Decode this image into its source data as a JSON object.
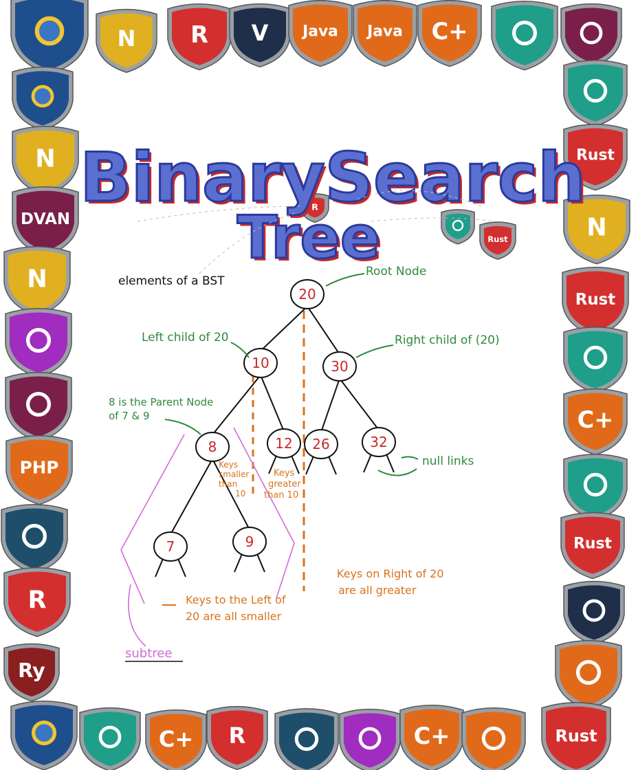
{
  "title": {
    "line1": "BinarySearch",
    "line2": "Tree",
    "fill": "#5a6fd0",
    "stroke": "#2b3a9c",
    "shadow": "#c62828"
  },
  "subtitle": "elements of a BST",
  "colors": {
    "green": "#2e8b3a",
    "orange": "#d9731a",
    "red": "#c62828",
    "pink": "#d36ad6",
    "ink": "#111111",
    "shield_rim": "#9aa0a6"
  },
  "tree": {
    "nodes": [
      {
        "key": "20",
        "label": "20"
      },
      {
        "key": "10",
        "label": "10"
      },
      {
        "key": "30",
        "label": "30"
      },
      {
        "key": "8",
        "label": "8"
      },
      {
        "key": "12",
        "label": "12"
      },
      {
        "key": "26",
        "label": "26"
      },
      {
        "key": "32",
        "label": "32"
      },
      {
        "key": "7",
        "label": "7"
      },
      {
        "key": "9",
        "label": "9"
      }
    ],
    "edges": [
      [
        "20",
        "10"
      ],
      [
        "20",
        "30"
      ],
      [
        "10",
        "8"
      ],
      [
        "10",
        "12"
      ],
      [
        "30",
        "26"
      ],
      [
        "30",
        "32"
      ],
      [
        "8",
        "7"
      ],
      [
        "8",
        "9"
      ]
    ]
  },
  "annotations": {
    "root_node": "Root Node",
    "left_child": "Left child of 20",
    "right_child": "Right child of (20)",
    "parent_node_line1": "8 is the Parent Node",
    "parent_node_line2": "of 7 & 9",
    "keys_smaller_line1": "Keys",
    "keys_smaller_line2": "smaller",
    "keys_smaller_line3": "than",
    "keys_smaller_line4": "10",
    "keys_greater_line1": "Keys",
    "keys_greater_line2": "greater",
    "keys_greater_line3": "than 10",
    "null_links": "null links",
    "keys_right_line1": "Keys on Right of 20",
    "keys_right_line2": "are all greater",
    "keys_left_line1": "Keys to the Left of",
    "keys_left_line2": "20 are all smaller",
    "subtree": "subtree"
  },
  "badges": [
    {
      "icon": "python-icon",
      "label": "",
      "color": "#1f4e8c"
    },
    {
      "icon": "node-icon",
      "label": "N",
      "color": "#e0b020"
    },
    {
      "icon": "r-logo-icon",
      "label": "R",
      "color": "#d32f2f"
    },
    {
      "icon": "v-logo-icon",
      "label": "V",
      "color": "#1f2f4a"
    },
    {
      "icon": "java-icon",
      "label": "Java",
      "color": "#e06a1a"
    },
    {
      "icon": "java-icon",
      "label": "Java",
      "color": "#e06a1a"
    },
    {
      "icon": "cplus-icon",
      "label": "C+",
      "color": "#e06a1a"
    },
    {
      "icon": "flutter-icon",
      "label": "",
      "color": "#1f9e8a"
    },
    {
      "icon": "d-logo-icon",
      "label": "",
      "color": "#7a1f4a"
    },
    {
      "icon": "python-icon",
      "label": "",
      "color": "#1f4e8c"
    },
    {
      "icon": "node-icon",
      "label": "N",
      "color": "#e0b020"
    },
    {
      "icon": "dvan-icon",
      "label": "DVAN",
      "color": "#7a1f4a"
    },
    {
      "icon": "node-icon",
      "label": "N",
      "color": "#e0b020"
    },
    {
      "icon": "d-logo-icon",
      "label": "",
      "color": "#a02cc0"
    },
    {
      "icon": "m-logo-icon",
      "label": "",
      "color": "#7a1f4a"
    },
    {
      "icon": "php-icon",
      "label": "PHP",
      "color": "#e06a1a"
    },
    {
      "icon": "c-circle-icon",
      "label": "",
      "color": "#1f4e6a"
    },
    {
      "icon": "r-logo-icon",
      "label": "R",
      "color": "#d32f2f"
    },
    {
      "icon": "ry-icon",
      "label": "Ry",
      "color": "#8a1f1f"
    },
    {
      "icon": "flutter-icon",
      "label": "",
      "color": "#1f9e8a"
    },
    {
      "icon": "rust-icon",
      "label": "Rust",
      "color": "#d32f2f"
    },
    {
      "icon": "node-icon",
      "label": "N",
      "color": "#e0b020"
    },
    {
      "icon": "rust-icon",
      "label": "Rust",
      "color": "#d32f2f"
    },
    {
      "icon": "u-logo-icon",
      "label": "",
      "color": "#1f9e8a"
    },
    {
      "icon": "cplus-icon",
      "label": "C+",
      "color": "#e06a1a"
    },
    {
      "icon": "u-logo-icon",
      "label": "",
      "color": "#1f9e8a"
    },
    {
      "icon": "rust-icon",
      "label": "Rust",
      "color": "#d32f2f"
    },
    {
      "icon": "ring-icon",
      "label": "",
      "color": "#1f2f4a"
    },
    {
      "icon": "kotlin-icon",
      "label": "",
      "color": "#e06a1a"
    },
    {
      "icon": "python-icon",
      "label": "",
      "color": "#1f4e8c"
    },
    {
      "icon": "flutter-icon",
      "label": "",
      "color": "#1f9e8a"
    },
    {
      "icon": "cplus-icon",
      "label": "C+",
      "color": "#e06a1a"
    },
    {
      "icon": "r-logo-icon",
      "label": "R",
      "color": "#d32f2f"
    },
    {
      "icon": "c-circle-icon",
      "label": "",
      "color": "#1f4e6a"
    },
    {
      "icon": "d-logo-icon",
      "label": "",
      "color": "#a02cc0"
    },
    {
      "icon": "cplus-icon",
      "label": "C+",
      "color": "#e06a1a"
    },
    {
      "icon": "kotlin-icon",
      "label": "",
      "color": "#e06a1a"
    },
    {
      "icon": "rust-icon",
      "label": "Rust",
      "color": "#d32f2f"
    },
    {
      "icon": "r-logo-icon",
      "label": "R",
      "color": "#d32f2f"
    },
    {
      "icon": "u-logo-icon",
      "label": "",
      "color": "#1f9e8a"
    },
    {
      "icon": "rust-icon",
      "label": "Rust",
      "color": "#d32f2f"
    }
  ]
}
